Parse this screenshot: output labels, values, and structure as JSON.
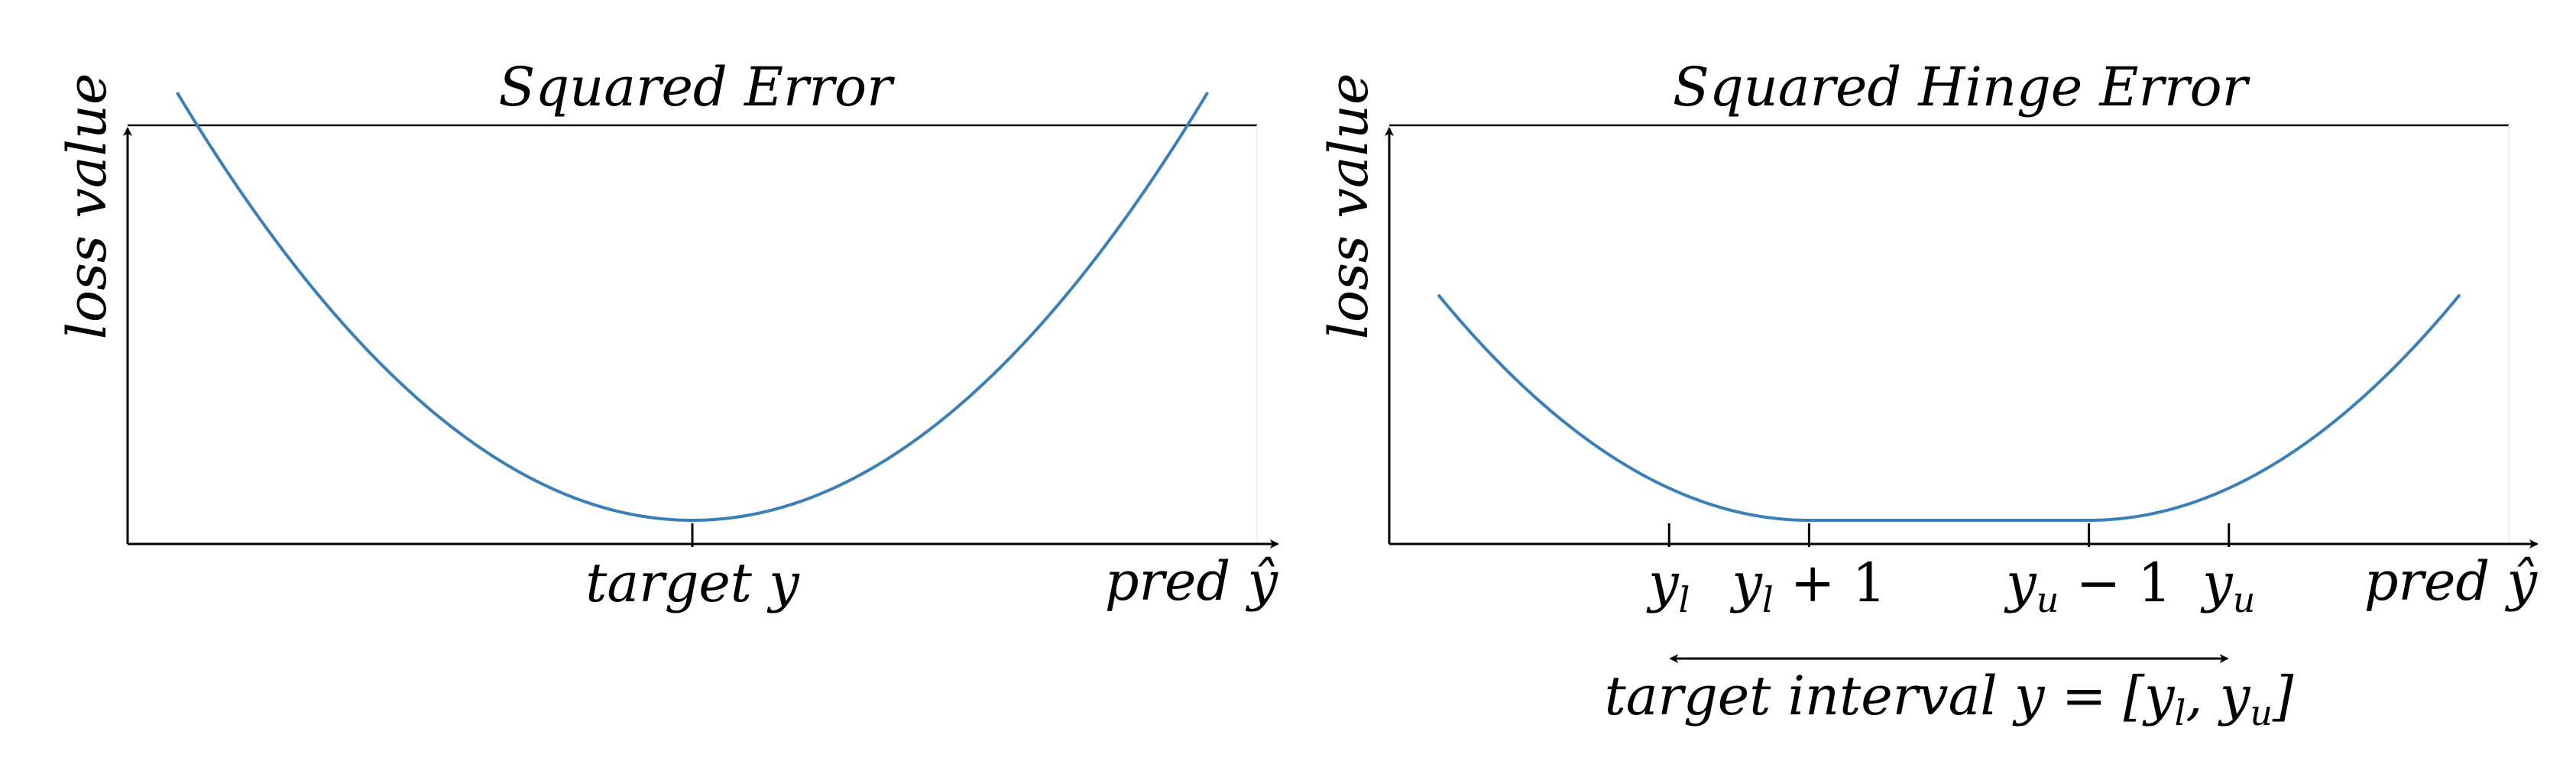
{
  "chart_data": [
    {
      "type": "line",
      "title": "Squared Error",
      "ylabel": "loss value",
      "xlabel": "pred ŷ",
      "xlim": [
        -4.0,
        4.0
      ],
      "ylim": [
        -0.18,
        3.0
      ],
      "series": [
        {
          "function": "squared_error",
          "domain": [
            -3.65,
            3.65
          ],
          "color": "#3a7fb8"
        }
      ],
      "ticks": [
        {
          "x": 0,
          "label": "target y"
        }
      ],
      "grid": false
    },
    {
      "type": "line",
      "title": "Squared Hinge Error",
      "ylabel": "loss value",
      "xlabel": "pred ŷ",
      "xlim": [
        -4.0,
        4.0
      ],
      "ylim": [
        -0.18,
        3.0
      ],
      "series": [
        {
          "function": "squared_hinge_error",
          "interval": [
            -2,
            2
          ],
          "margin": 1,
          "domain": [
            -3.65,
            3.65
          ],
          "color": "#3a7fb8"
        }
      ],
      "ticks": [
        {
          "x": -2,
          "label": "y_l",
          "parts": [
            "y",
            "l",
            ""
          ]
        },
        {
          "x": -1,
          "label": "y_l + 1",
          "parts": [
            "y",
            "l",
            "+ 1"
          ]
        },
        {
          "x": 1,
          "label": "y_u − 1",
          "parts": [
            "y",
            "u",
            "− 1"
          ]
        },
        {
          "x": 2,
          "label": "y_u",
          "parts": [
            "y",
            "u",
            ""
          ]
        }
      ],
      "annotation": {
        "text": "target interval y = [y_l, y_u]",
        "prefix": "target interval y = [",
        "middle": ", ",
        "suffix": "]",
        "from": -2,
        "to": 2
      },
      "grid": false
    }
  ]
}
